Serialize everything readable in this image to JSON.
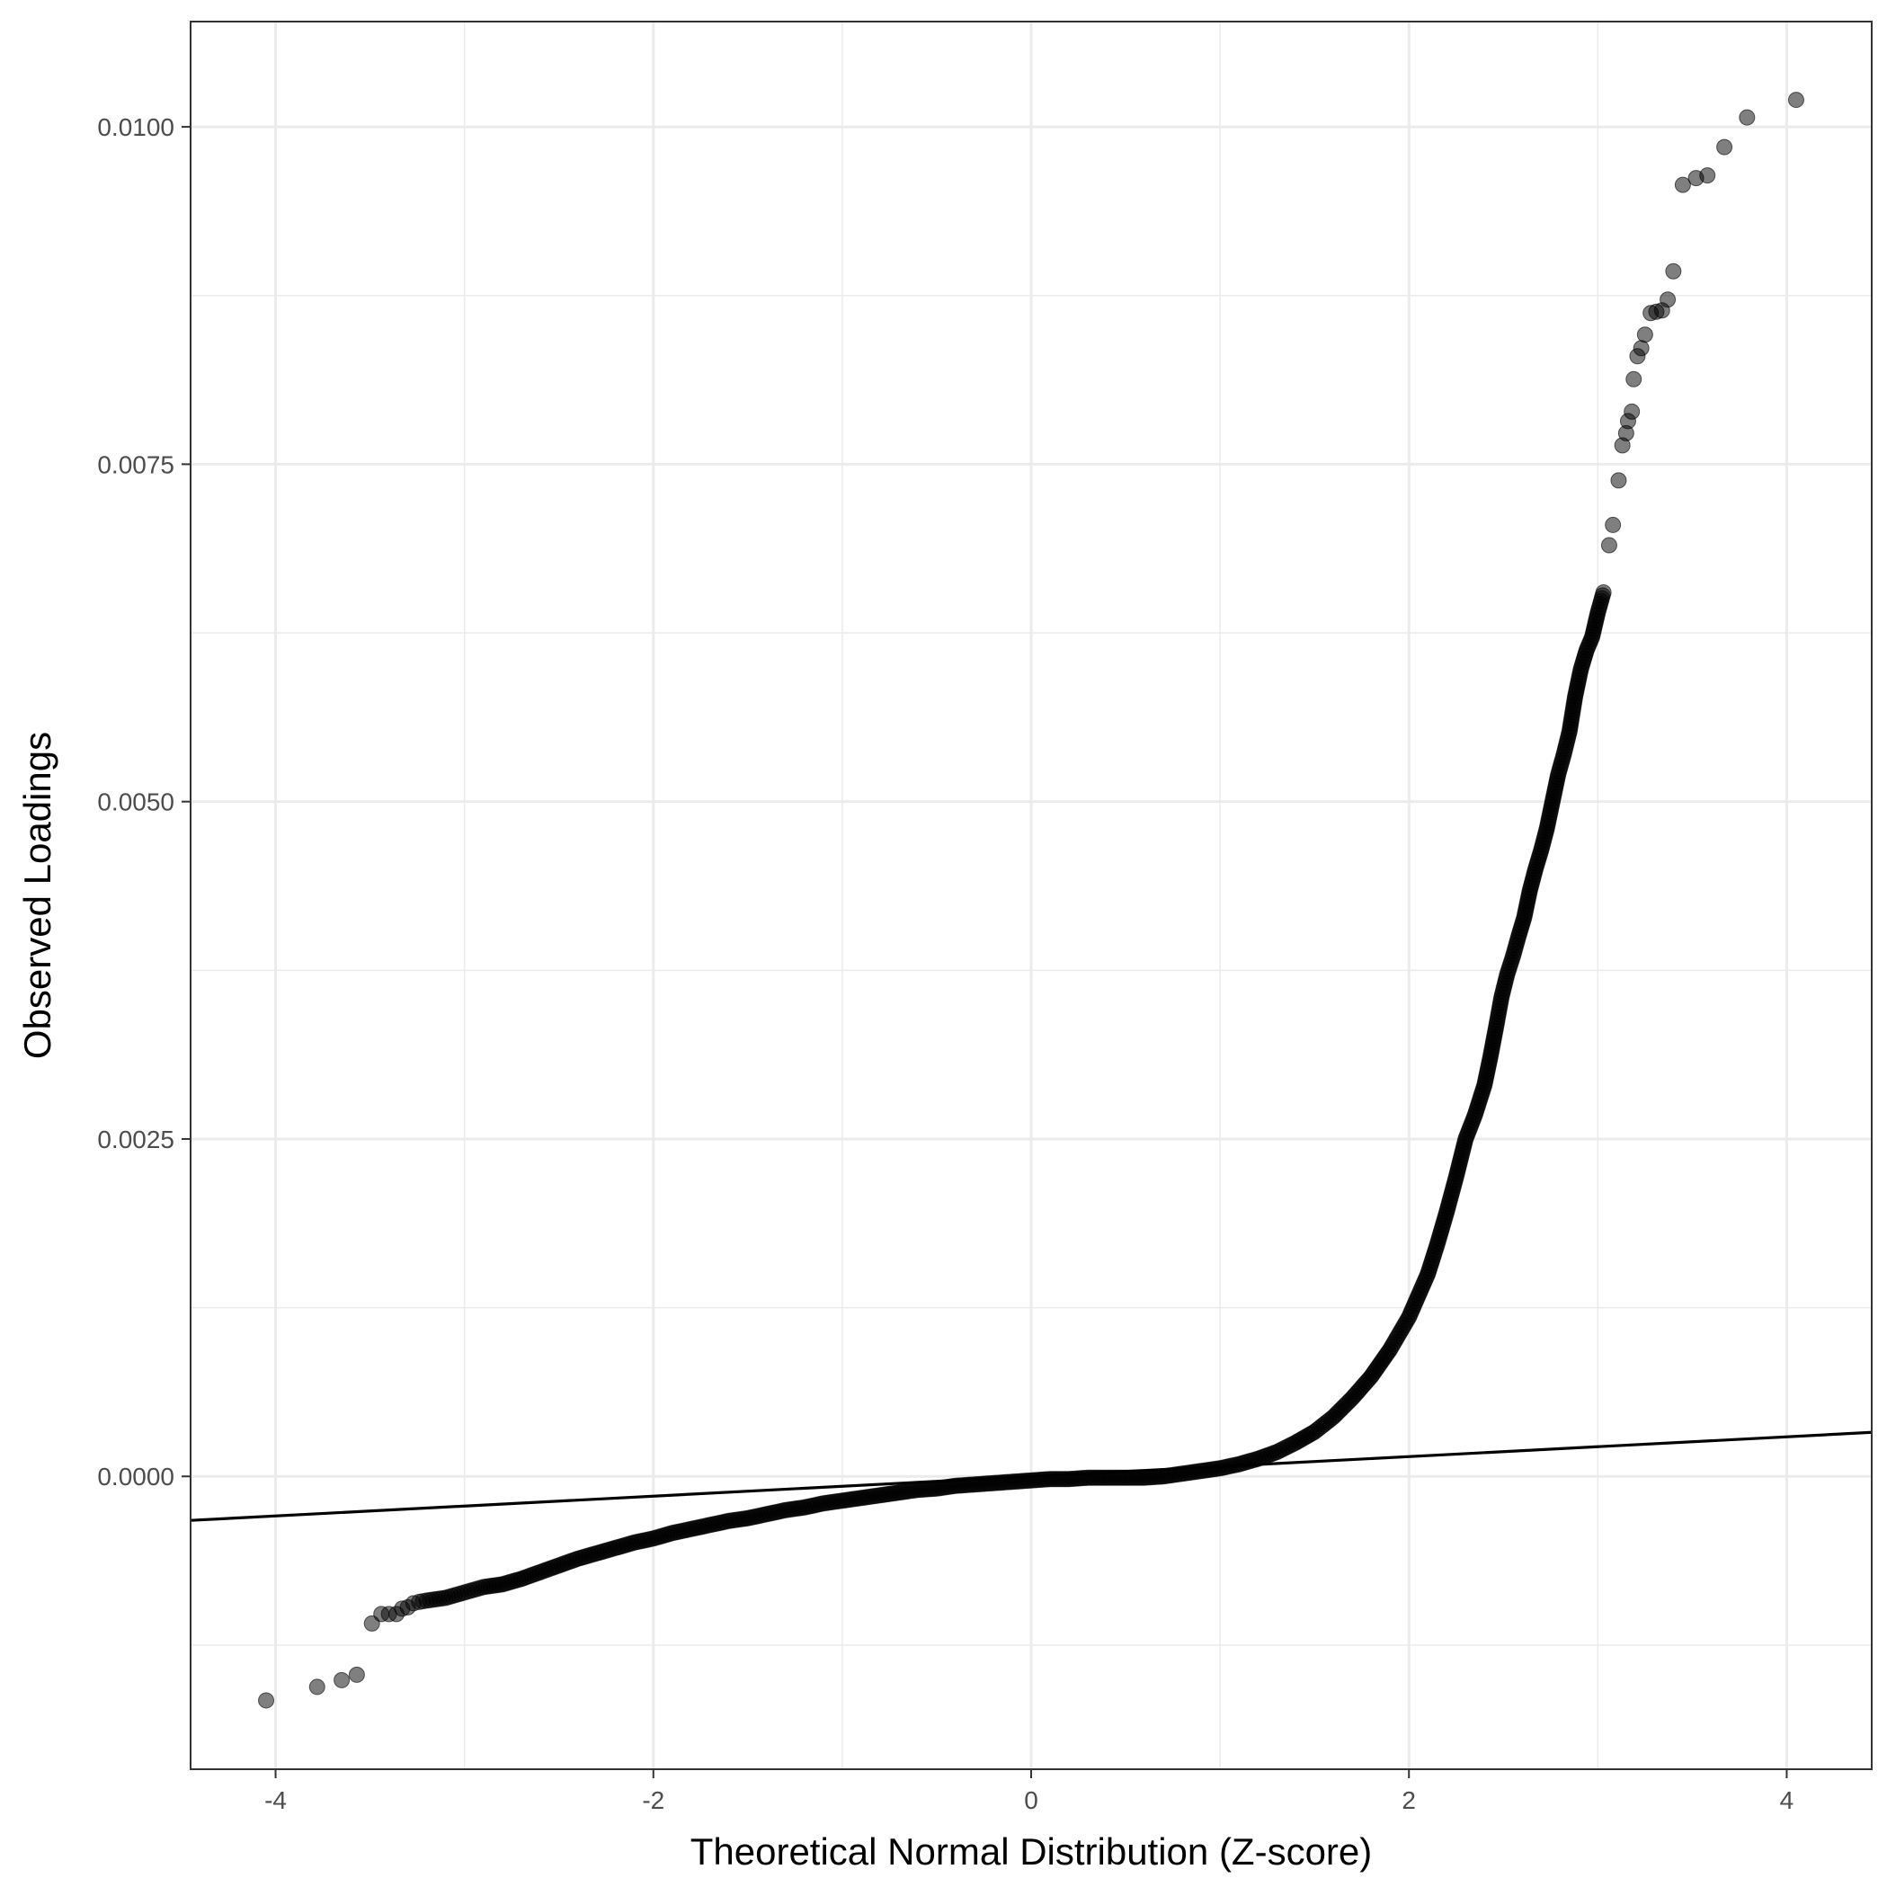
{
  "chart_data": {
    "type": "scatter",
    "title": "",
    "xlabel": "Theoretical Normal Distribution (Z-score)",
    "ylabel": "Observed Loadings",
    "xlim": [
      -4.45,
      4.45
    ],
    "ylim": [
      -0.00217,
      0.01078
    ],
    "x_ticks": [
      -4,
      -2,
      0,
      2,
      4
    ],
    "x_tick_labels": [
      "-4",
      "-2",
      "0",
      "2",
      "4"
    ],
    "x_minor_ticks": [
      -3,
      -1,
      1,
      3
    ],
    "y_ticks": [
      0.0,
      0.0025,
      0.005,
      0.0075,
      0.01
    ],
    "y_tick_labels": [
      "0.0000",
      "0.0025",
      "0.0050",
      "0.0075",
      "0.0100"
    ],
    "y_minor_ticks": [
      -0.00125,
      0.00125,
      0.00375,
      0.00625,
      0.00875
    ],
    "grid": true,
    "legend": "none",
    "point_color": "#000000",
    "point_opacity": 0.5,
    "reference_line": {
      "slope": 7.33e-05,
      "intercept": 0.0,
      "color": "#000000"
    },
    "points": [
      [
        -4.05,
        -0.00166
      ],
      [
        -3.78,
        -0.00156
      ],
      [
        -3.65,
        -0.00151
      ],
      [
        -3.57,
        -0.00147
      ],
      [
        -3.49,
        -0.00109
      ],
      [
        -3.44,
        -0.00102
      ],
      [
        -3.4,
        -0.00102
      ],
      [
        -3.36,
        -0.00102
      ],
      [
        -3.33,
        -0.00098
      ],
      [
        -3.3,
        -0.00097
      ],
      [
        -3.27,
        -0.00094
      ],
      [
        -3.24,
        -0.00093
      ],
      [
        -3.2,
        -0.00092
      ],
      [
        -3.15,
        -0.00091
      ],
      [
        -3.1,
        -0.0009
      ],
      [
        -3.05,
        -0.00088
      ],
      [
        -3.0,
        -0.00086
      ],
      [
        -2.95,
        -0.00084
      ],
      [
        -2.9,
        -0.00082
      ],
      [
        -2.8,
        -0.0008
      ],
      [
        -2.7,
        -0.00076
      ],
      [
        -2.6,
        -0.00071
      ],
      [
        -2.5,
        -0.00066
      ],
      [
        -2.4,
        -0.00061
      ],
      [
        -2.3,
        -0.00057
      ],
      [
        -2.2,
        -0.00053
      ],
      [
        -2.1,
        -0.00049
      ],
      [
        -2.0,
        -0.00046
      ],
      [
        -1.9,
        -0.00042
      ],
      [
        -1.8,
        -0.00039
      ],
      [
        -1.7,
        -0.00036
      ],
      [
        -1.6,
        -0.00033
      ],
      [
        -1.5,
        -0.00031
      ],
      [
        -1.4,
        -0.00028
      ],
      [
        -1.3,
        -0.00025
      ],
      [
        -1.2,
        -0.00023
      ],
      [
        -1.1,
        -0.0002
      ],
      [
        -1.0,
        -0.00018
      ],
      [
        -0.9,
        -0.00016
      ],
      [
        -0.8,
        -0.00014
      ],
      [
        -0.7,
        -0.00012
      ],
      [
        -0.6,
        -0.0001
      ],
      [
        -0.5,
        -9e-05
      ],
      [
        -0.4,
        -7e-05
      ],
      [
        -0.3,
        -6e-05
      ],
      [
        -0.2,
        -5e-05
      ],
      [
        -0.1,
        -4e-05
      ],
      [
        0.0,
        -3e-05
      ],
      [
        0.1,
        -2e-05
      ],
      [
        0.2,
        -2e-05
      ],
      [
        0.3,
        -1e-05
      ],
      [
        0.4,
        -1e-05
      ],
      [
        0.5,
        -1e-05
      ],
      [
        0.6,
        -1e-05
      ],
      [
        0.7,
        0.0
      ],
      [
        0.8,
        2e-05
      ],
      [
        0.9,
        4e-05
      ],
      [
        1.0,
        6e-05
      ],
      [
        1.1,
        9e-05
      ],
      [
        1.2,
        0.00013
      ],
      [
        1.3,
        0.00018
      ],
      [
        1.4,
        0.00025
      ],
      [
        1.5,
        0.00033
      ],
      [
        1.6,
        0.00044
      ],
      [
        1.7,
        0.00058
      ],
      [
        1.75,
        0.00066
      ],
      [
        1.8,
        0.00074
      ],
      [
        1.85,
        0.00084
      ],
      [
        1.9,
        0.00094
      ],
      [
        1.95,
        0.00106
      ],
      [
        2.0,
        0.00118
      ],
      [
        2.05,
        0.00134
      ],
      [
        2.1,
        0.0015
      ],
      [
        2.15,
        0.00172
      ],
      [
        2.2,
        0.00196
      ],
      [
        2.25,
        0.00222
      ],
      [
        2.3,
        0.0025
      ],
      [
        2.35,
        0.00268
      ],
      [
        2.4,
        0.0029
      ],
      [
        2.43,
        0.0031
      ],
      [
        2.46,
        0.00332
      ],
      [
        2.49,
        0.00355
      ],
      [
        2.52,
        0.00372
      ],
      [
        2.55,
        0.00385
      ],
      [
        2.58,
        0.004
      ],
      [
        2.61,
        0.00414
      ],
      [
        2.64,
        0.00434
      ],
      [
        2.67,
        0.0045
      ],
      [
        2.7,
        0.00464
      ],
      [
        2.73,
        0.0048
      ],
      [
        2.76,
        0.005
      ],
      [
        2.79,
        0.0052
      ],
      [
        2.82,
        0.00535
      ],
      [
        2.85,
        0.00552
      ],
      [
        2.88,
        0.00578
      ],
      [
        2.91,
        0.00598
      ],
      [
        2.94,
        0.00612
      ],
      [
        2.97,
        0.00622
      ],
      [
        3.0,
        0.0064
      ],
      [
        3.03,
        0.00655
      ],
      [
        3.06,
        0.0069
      ],
      [
        3.08,
        0.00705
      ],
      [
        3.11,
        0.00738
      ],
      [
        3.13,
        0.00764
      ],
      [
        3.15,
        0.00773
      ],
      [
        3.16,
        0.00782
      ],
      [
        3.18,
        0.00789
      ],
      [
        3.19,
        0.00813
      ],
      [
        3.21,
        0.0083
      ],
      [
        3.23,
        0.00836
      ],
      [
        3.25,
        0.00846
      ],
      [
        3.28,
        0.00862
      ],
      [
        3.31,
        0.00863
      ],
      [
        3.34,
        0.00864
      ],
      [
        3.37,
        0.00872
      ],
      [
        3.4,
        0.00893
      ],
      [
        3.45,
        0.00957
      ],
      [
        3.52,
        0.00962
      ],
      [
        3.58,
        0.00964
      ],
      [
        3.67,
        0.00985
      ],
      [
        3.79,
        0.01007
      ],
      [
        4.05,
        0.0102
      ]
    ]
  }
}
